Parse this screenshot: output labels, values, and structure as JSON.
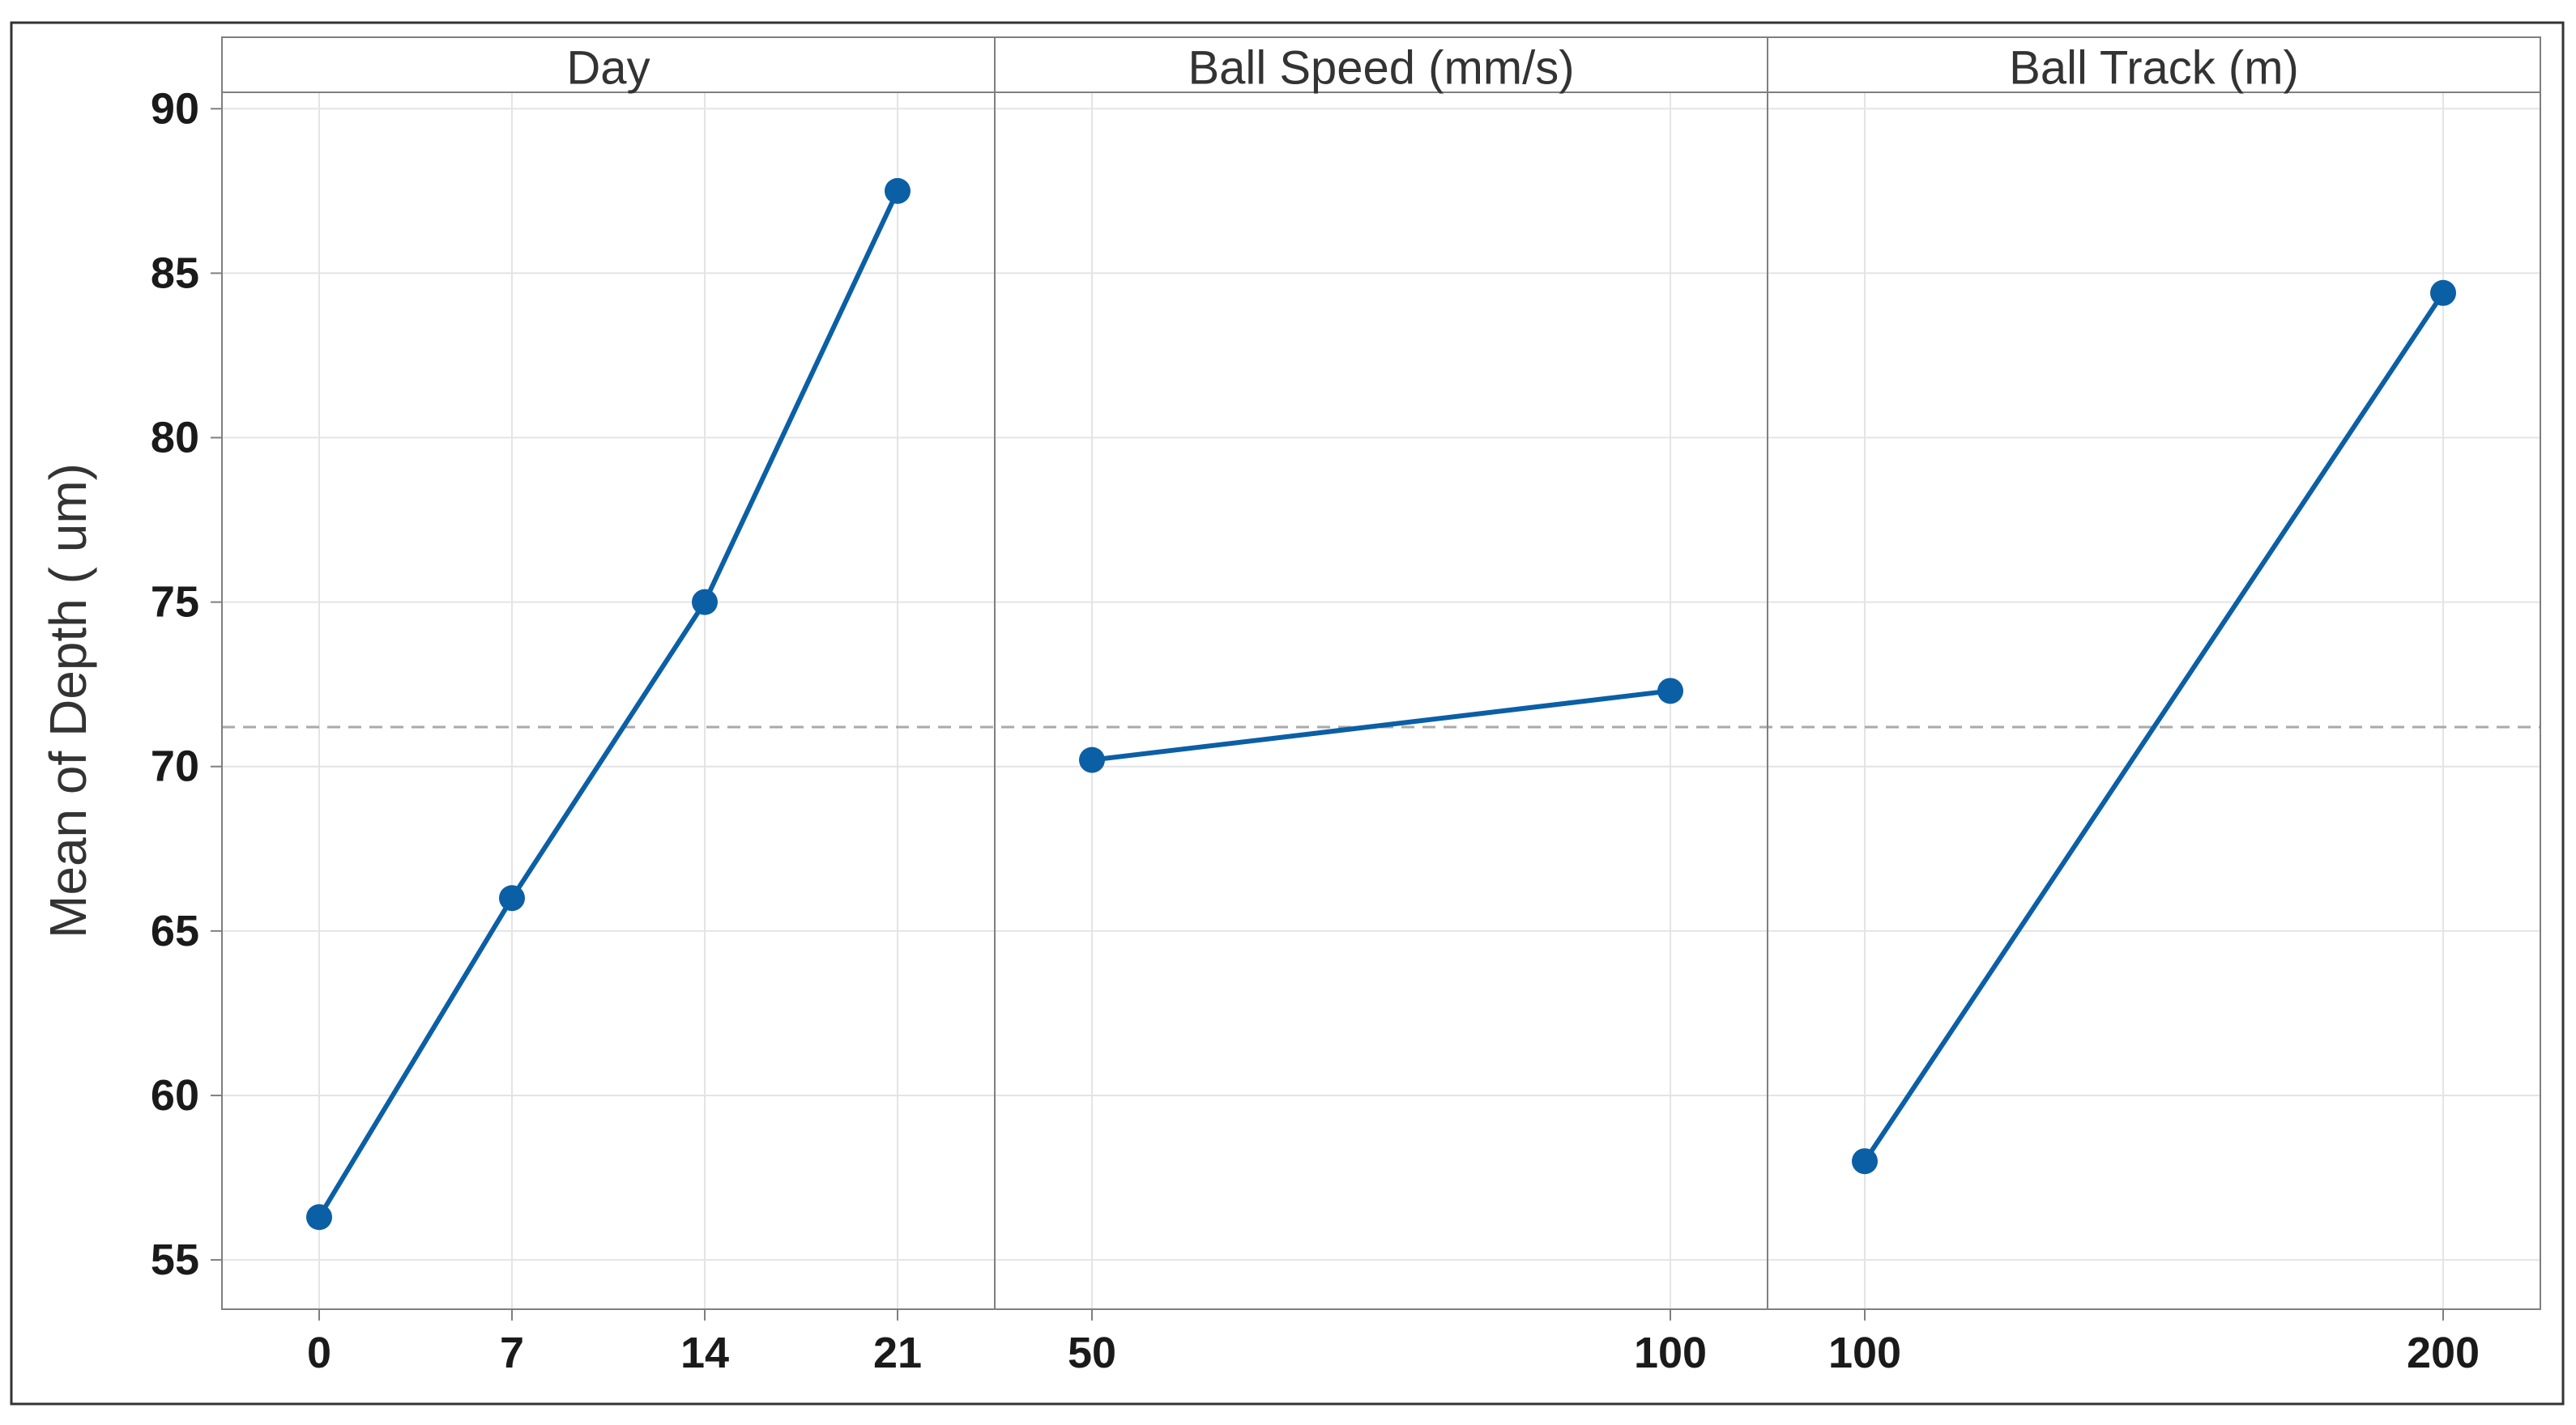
{
  "chart_data": {
    "type": "line",
    "ylabel": "Mean of Depth ( um)",
    "ylim": [
      53.5,
      90.5
    ],
    "yticks": [
      55,
      60,
      65,
      70,
      75,
      80,
      85,
      90
    ],
    "reference_line": 71.2,
    "grid": true,
    "panels": [
      {
        "title": "Day",
        "categories": [
          "0",
          "7",
          "14",
          "21"
        ],
        "values": [
          56.3,
          66.0,
          75.0,
          87.5
        ]
      },
      {
        "title": "Ball Speed (mm/s)",
        "categories": [
          "50",
          "100"
        ],
        "values": [
          70.2,
          72.3
        ]
      },
      {
        "title": "Ball Track (m)",
        "categories": [
          "100",
          "200"
        ],
        "values": [
          58.0,
          84.4
        ]
      }
    ],
    "colors": {
      "series": "#0b5fa5",
      "reference": "#a9a9a9",
      "grid": "#e4e4e4",
      "frame": "#7f7f7f"
    }
  }
}
